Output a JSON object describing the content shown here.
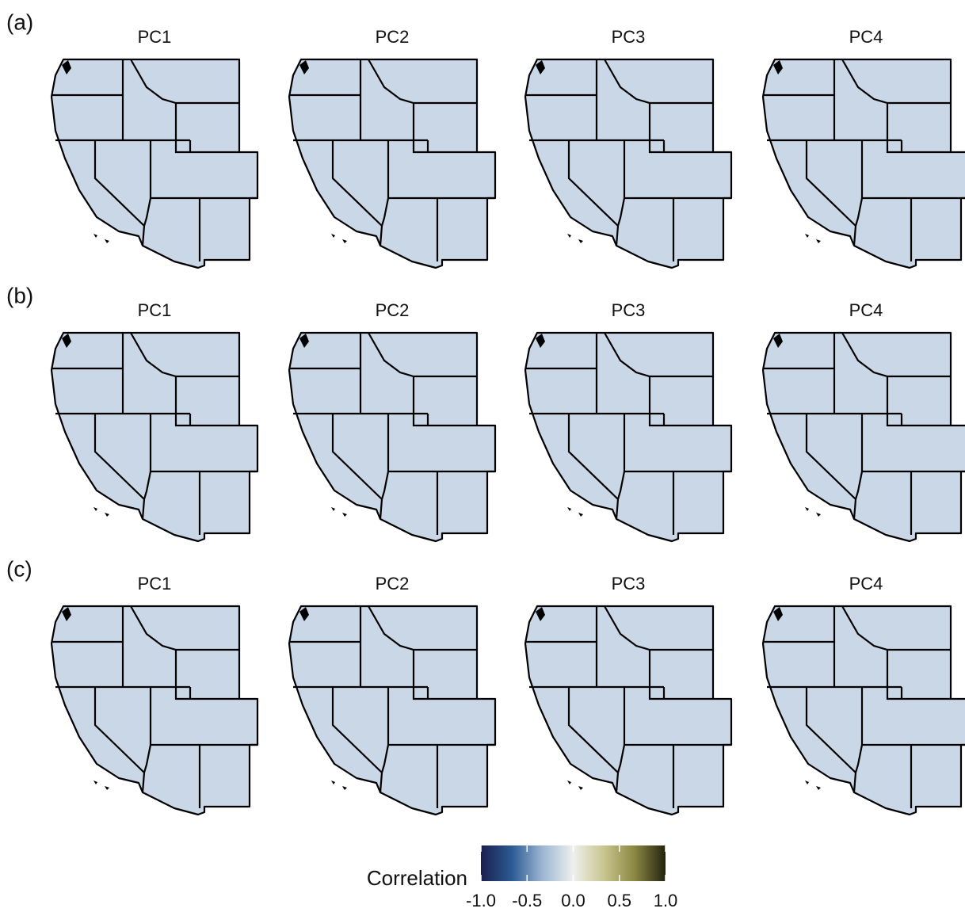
{
  "rows": [
    {
      "label": "(a)",
      "panels": [
        "PC1",
        "PC2",
        "PC3",
        "PC4"
      ]
    },
    {
      "label": "(b)",
      "panels": [
        "PC1",
        "PC2",
        "PC3",
        "PC4"
      ]
    },
    {
      "label": "(c)",
      "panels": [
        "PC1",
        "PC2",
        "PC3",
        "PC4"
      ]
    }
  ],
  "legend": {
    "title": "Correlation",
    "lim": [
      -1,
      1
    ],
    "ticks": [
      {
        "value": -1,
        "label": "-1.0"
      },
      {
        "value": -0.5,
        "label": "-0.5"
      },
      {
        "value": 0,
        "label": "0.0"
      },
      {
        "value": 0.5,
        "label": "0.5"
      },
      {
        "value": 1,
        "label": "1.0"
      }
    ],
    "colors": [
      "#1b1f4e",
      "#2b5a93",
      "#9db6d3",
      "#eef0ee",
      "#c9c58e",
      "#8a8742",
      "#23230e"
    ]
  }
}
